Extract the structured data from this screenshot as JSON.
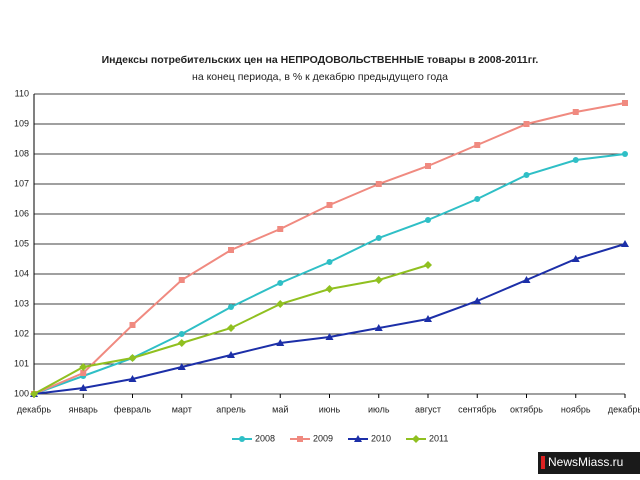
{
  "chart_data": {
    "type": "line",
    "title": "Индексы потребительских цен на НЕПРОДОВОЛЬСТВЕННЫЕ товары в 2008-2011гг.",
    "subtitle": "на конец периода, в % к декабрю предыдущего года",
    "categories": [
      "декабрь",
      "январь",
      "февраль",
      "март",
      "апрель",
      "май",
      "июнь",
      "июль",
      "август",
      "сентябрь",
      "октябрь",
      "ноябрь",
      "декабрь"
    ],
    "series": [
      {
        "name": "2008",
        "color": "#2fbfc6",
        "marker": "circle",
        "values": [
          100,
          100.6,
          101.2,
          102,
          102.9,
          103.7,
          104.4,
          105.2,
          105.8,
          106.5,
          107.3,
          107.8,
          108
        ]
      },
      {
        "name": "2009",
        "color": "#f08a80",
        "marker": "square",
        "values": [
          100,
          100.7,
          102.3,
          103.8,
          104.8,
          105.5,
          106.3,
          107,
          107.6,
          108.3,
          109,
          109.4,
          109.7
        ]
      },
      {
        "name": "2010",
        "color": "#1c2fa8",
        "marker": "triangle",
        "values": [
          100,
          100.2,
          100.5,
          100.9,
          101.3,
          101.7,
          101.9,
          102.2,
          102.5,
          103.1,
          103.8,
          104.5,
          105
        ]
      },
      {
        "name": "2011",
        "color": "#90c020",
        "marker": "diamond",
        "values": [
          100,
          100.9,
          101.2,
          101.7,
          102.2,
          103,
          103.5,
          103.8,
          104.3,
          null,
          null,
          null,
          null
        ]
      }
    ],
    "ylim": [
      100,
      110
    ],
    "yticks": [
      100,
      101,
      102,
      103,
      104,
      105,
      106,
      107,
      108,
      109,
      110
    ],
    "grid": true,
    "legend": "bottom",
    "watermark": "NewsMiass.ru"
  }
}
